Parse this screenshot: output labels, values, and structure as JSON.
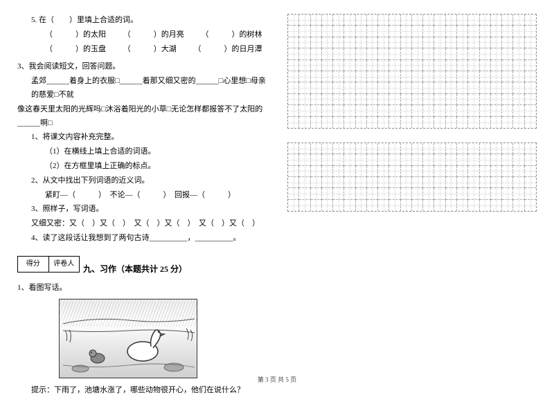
{
  "left": {
    "q5": {
      "intro": "5. 在（　　）里填上合适的词。",
      "row1a": "（　　　）的太阳",
      "row1b": "（　　　）的月亮",
      "row1c": "（　　　）的树林",
      "row2a": "（　　　）的玉盘",
      "row2b": "（　　　）大湖",
      "row2c": "（　　　）的日月潭"
    },
    "q3main": "3、我会阅读短文，回答问题。",
    "passage1": "孟郊______着身上的衣服□______着那又细又密的______□心里想□母亲的慈爱□不就",
    "passage2": "像这春天里太阳的光辉吗□沐浴着阳光的小草□无论怎样都报答不了太阳的______啊□",
    "sub1": "1、将课文内容补充完整。",
    "sub1a": "（1）在横线上填上合适的词语。",
    "sub1b": "（2）在方框里填上正确的标点。",
    "sub2": "2、从文中找出下列词语的近义词。",
    "sub2a": "紧盯—（　　　）　不论—（　　　）　回报—（　　　）",
    "sub3": "3、照样子，写词语。",
    "sub3a": "又细又密：又（　）又（　）　又（　）又（　）　又（　）又（　）",
    "sub4": "4、读了这段话让我想到了两句古诗__________，__________。",
    "score1": "得分",
    "score2": "评卷人",
    "section9": "九、习作（本题共计 25 分）",
    "pic_q": "1、看图写话。",
    "pic_hint": "提示：下雨了，池塘水涨了，哪些动物很开心，他们在说什么？"
  },
  "grid": {
    "rows1": 10,
    "rows2": 6,
    "cols": 22
  },
  "footer": "第 3 页 共 5 页"
}
